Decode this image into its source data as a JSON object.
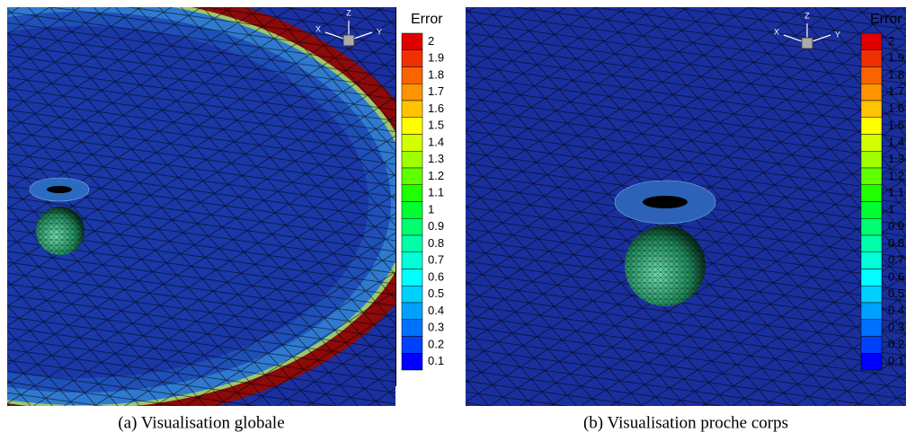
{
  "panels": [
    {
      "caption": "(a) Visualisation globale",
      "axes": {
        "x": "X",
        "y": "Y",
        "z": "Z"
      },
      "legend": {
        "title": "Error",
        "labels": [
          2,
          1.9,
          1.8,
          1.7,
          1.6,
          1.5,
          1.4,
          1.3,
          1.2,
          1.1,
          1,
          0.9,
          0.8,
          0.7,
          0.6,
          0.5,
          0.4,
          0.3,
          0.2,
          0.1
        ]
      }
    },
    {
      "caption": "(b) Visualisation proche corps",
      "axes": {
        "x": "X",
        "y": "Y",
        "z": "Z"
      },
      "legend": {
        "title": "Error",
        "labels": [
          2,
          1.9,
          1.8,
          1.7,
          1.6,
          1.5,
          1.4,
          1.3,
          1.2,
          1.1,
          1,
          0.9,
          0.8,
          0.7,
          0.6,
          0.5,
          0.4,
          0.3,
          0.2,
          0.1
        ]
      }
    }
  ]
}
